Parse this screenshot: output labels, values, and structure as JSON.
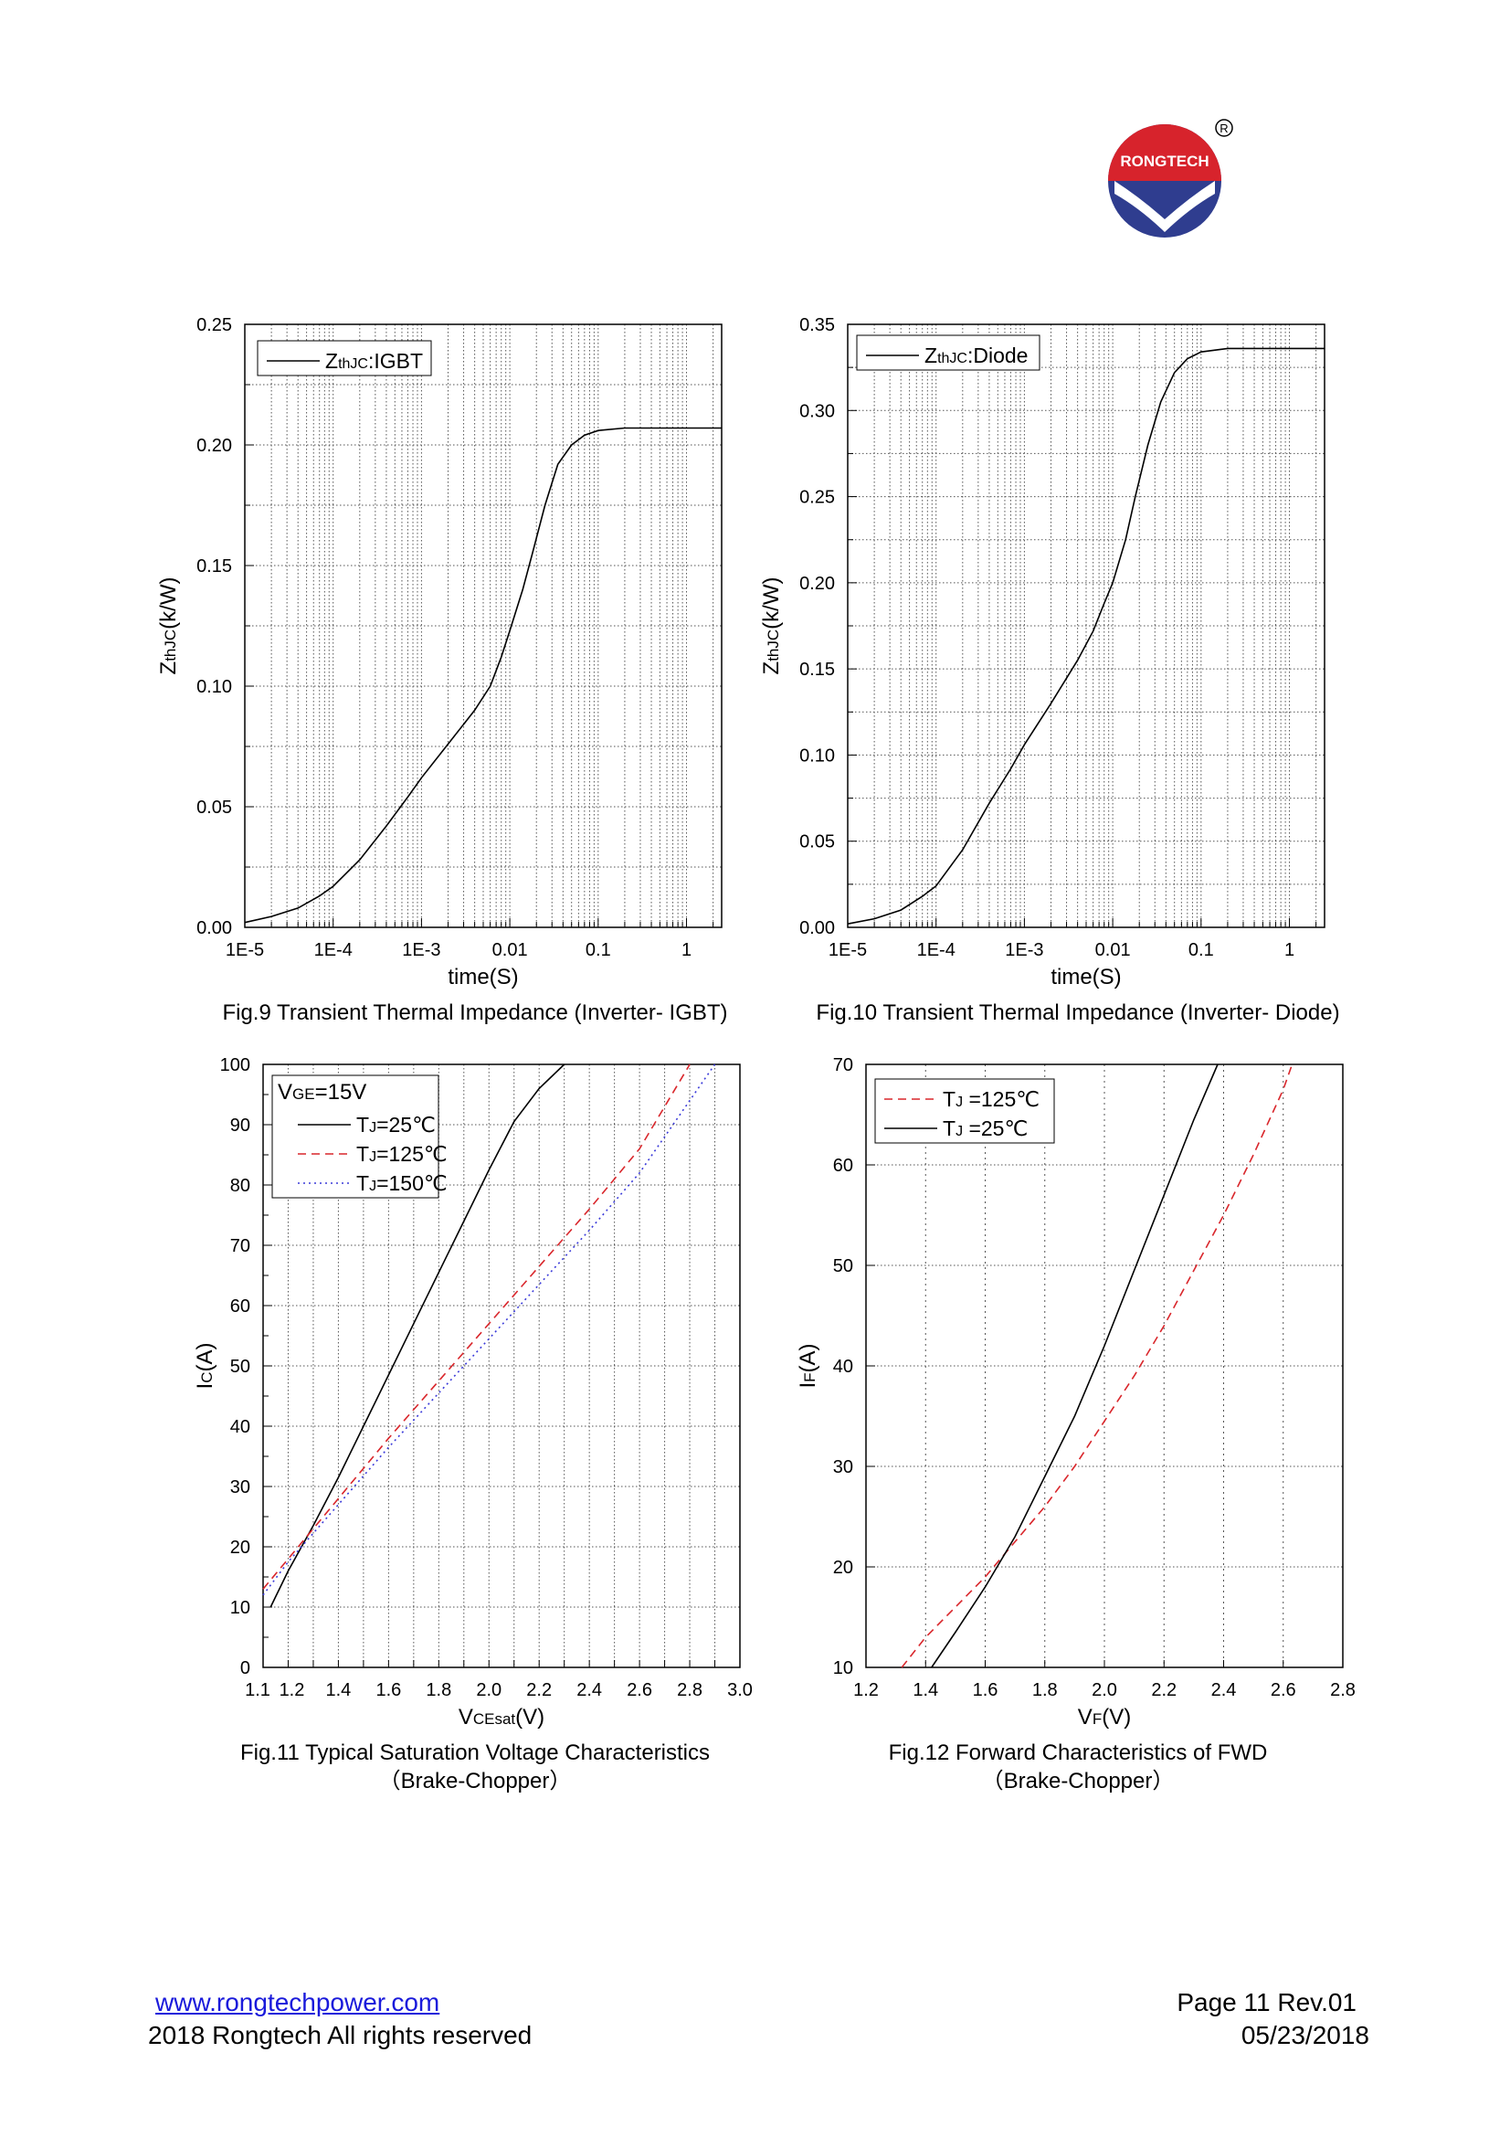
{
  "logo": {
    "brand": "RONGTECH",
    "registered": "®",
    "colors": {
      "red": "#d7232c",
      "blue": "#2f3d8f"
    }
  },
  "captions": {
    "fig9": {
      "line1": "Fig.9 Transient Thermal Impedance (Inverter- IGBT)"
    },
    "fig10": {
      "line1": "Fig.10 Transient Thermal Impedance (Inverter- Diode)"
    },
    "fig11": {
      "line1": "Fig.11 Typical Saturation Voltage Characteristics",
      "line2": "（Brake-Chopper）"
    },
    "fig12": {
      "line1": "Fig.12 Forward Characteristics of FWD",
      "line2": "（Brake-Chopper）"
    }
  },
  "footer": {
    "website": "www.rongtechpower.com",
    "copyright": "2018 Rongtech All rights reserved",
    "page": "Page 11  Rev.01",
    "date": "05/23/2018"
  },
  "chart_data": [
    {
      "id": "fig9",
      "type": "line",
      "xscale": "log",
      "xlim": [
        1e-05,
        2.5
      ],
      "ylim": [
        0,
        0.25
      ],
      "xticks": [
        1e-05,
        0.0001,
        0.001,
        0.01,
        0.1,
        1
      ],
      "xtick_labels": [
        "1E-5",
        "1E-4",
        "1E-3",
        "0.01",
        "0.1",
        "1"
      ],
      "yticks": [
        0.0,
        0.05,
        0.1,
        0.15,
        0.2,
        0.25
      ],
      "ytick_labels": [
        "0.00",
        "0.05",
        "0.10",
        "0.15",
        "0.20",
        "0.25"
      ],
      "xlabel": "time(S)",
      "ylabel": {
        "main": "Z",
        "sub": "thJC",
        "rest": "(k/W)"
      },
      "grid": true,
      "legend_position": "top-left",
      "series": [
        {
          "name": {
            "main": "Z",
            "sub": "thJC",
            "rest": ":IGBT"
          },
          "color": "#000000",
          "dash": "solid",
          "x": [
            1e-05,
            2e-05,
            4e-05,
            7e-05,
            0.0001,
            0.0002,
            0.0004,
            0.0007,
            0.001,
            0.002,
            0.004,
            0.006,
            0.008,
            0.01,
            0.014,
            0.018,
            0.025,
            0.035,
            0.05,
            0.07,
            0.1,
            0.2,
            0.5,
            1,
            2.5
          ],
          "y": [
            0.002,
            0.0045,
            0.008,
            0.013,
            0.017,
            0.028,
            0.042,
            0.054,
            0.062,
            0.076,
            0.09,
            0.1,
            0.112,
            0.123,
            0.14,
            0.155,
            0.175,
            0.192,
            0.2,
            0.204,
            0.206,
            0.207,
            0.207,
            0.207,
            0.207
          ]
        }
      ]
    },
    {
      "id": "fig10",
      "type": "line",
      "xscale": "log",
      "xlim": [
        1e-05,
        2.5
      ],
      "ylim": [
        0,
        0.35
      ],
      "xticks": [
        1e-05,
        0.0001,
        0.001,
        0.01,
        0.1,
        1
      ],
      "xtick_labels": [
        "1E-5",
        "1E-4",
        "1E-3",
        "0.01",
        "0.1",
        "1"
      ],
      "yticks": [
        0.0,
        0.05,
        0.1,
        0.15,
        0.2,
        0.25,
        0.3,
        0.35
      ],
      "ytick_labels": [
        "0.00",
        "0.05",
        "0.10",
        "0.15",
        "0.20",
        "0.25",
        "0.30",
        "0.35"
      ],
      "xlabel": "time(S)",
      "ylabel": {
        "main": "Z",
        "sub": "thJC",
        "rest": "(k/W)"
      },
      "grid": true,
      "legend_position": "top-left",
      "series": [
        {
          "name": {
            "main": "Z",
            "sub": "thJC",
            "rest": ":Diode"
          },
          "color": "#000000",
          "dash": "solid",
          "x": [
            1e-05,
            2e-05,
            4e-05,
            7e-05,
            0.0001,
            0.0002,
            0.0004,
            0.0007,
            0.001,
            0.002,
            0.004,
            0.006,
            0.008,
            0.01,
            0.014,
            0.018,
            0.025,
            0.035,
            0.05,
            0.07,
            0.1,
            0.2,
            0.5,
            1,
            2.5
          ],
          "y": [
            0.002,
            0.005,
            0.01,
            0.018,
            0.024,
            0.045,
            0.072,
            0.092,
            0.106,
            0.13,
            0.155,
            0.172,
            0.188,
            0.2,
            0.225,
            0.25,
            0.28,
            0.305,
            0.322,
            0.33,
            0.334,
            0.336,
            0.336,
            0.336,
            0.336
          ]
        }
      ]
    },
    {
      "id": "fig11",
      "type": "line",
      "xscale": "linear",
      "xlim": [
        1.1,
        3.0
      ],
      "ylim": [
        0,
        100
      ],
      "xticks": [
        1.1,
        1.2,
        1.4,
        1.6,
        1.8,
        2.0,
        2.2,
        2.4,
        2.6,
        2.8,
        3.0
      ],
      "xtick_labels": [
        "1.1",
        "1.2",
        "1.4",
        "1.6",
        "1.8",
        "2.0",
        "2.2",
        "2.4",
        "2.6",
        "2.8",
        "3.0"
      ],
      "yticks": [
        0,
        10,
        20,
        30,
        40,
        50,
        60,
        70,
        80,
        90,
        100
      ],
      "ytick_labels": [
        "0",
        "10",
        "20",
        "30",
        "40",
        "50",
        "60",
        "70",
        "80",
        "90",
        "100"
      ],
      "xlabel": {
        "main": "V",
        "sub": "CEsat",
        "rest": "(V)"
      },
      "ylabel": {
        "main": "I",
        "sub": "C",
        "rest": "(A)"
      },
      "grid": true,
      "legend_position": "top-left",
      "legend_title": {
        "main": "V",
        "sub": "GE",
        "rest": "=15V"
      },
      "series": [
        {
          "name": {
            "main": "T",
            "sub": "J",
            "rest": "=25℃"
          },
          "color": "#000000",
          "dash": "solid",
          "x": [
            1.13,
            1.2,
            1.3,
            1.4,
            1.5,
            1.6,
            1.7,
            1.8,
            1.9,
            2.0,
            2.1,
            2.2,
            2.3
          ],
          "y": [
            10,
            16,
            23.5,
            31.5,
            40,
            48.5,
            57,
            65.5,
            74,
            82.5,
            90.5,
            96,
            100
          ]
        },
        {
          "name": {
            "main": "T",
            "sub": "J",
            "rest": "=125℃"
          },
          "color": "#d9262b",
          "dash": "dashed",
          "x": [
            1.1,
            1.2,
            1.4,
            1.6,
            1.8,
            2.0,
            2.2,
            2.4,
            2.6,
            2.8
          ],
          "y": [
            13,
            18,
            28,
            38,
            47.5,
            57,
            66.5,
            76,
            86,
            100
          ]
        },
        {
          "name": {
            "main": "T",
            "sub": "J",
            "rest": "=150℃"
          },
          "color": "#3a3ad9",
          "dash": "dotted",
          "x": [
            1.1,
            1.2,
            1.4,
            1.6,
            1.8,
            2.0,
            2.2,
            2.4,
            2.6,
            2.9
          ],
          "y": [
            12,
            17.5,
            27,
            36.5,
            45.5,
            54.5,
            63.5,
            72.5,
            82,
            100
          ]
        }
      ]
    },
    {
      "id": "fig12",
      "type": "line",
      "xscale": "linear",
      "xlim": [
        1.2,
        2.8
      ],
      "ylim": [
        10,
        70
      ],
      "xticks": [
        1.2,
        1.4,
        1.6,
        1.8,
        2.0,
        2.2,
        2.4,
        2.6,
        2.8
      ],
      "xtick_labels": [
        "1.2",
        "1.4",
        "1.6",
        "1.8",
        "2.0",
        "2.2",
        "2.4",
        "2.6",
        "2.8"
      ],
      "yticks": [
        10,
        20,
        30,
        40,
        50,
        60,
        70
      ],
      "ytick_labels": [
        "10",
        "20",
        "30",
        "40",
        "50",
        "60",
        "70"
      ],
      "xlabel": {
        "main": "V",
        "sub": "F",
        "rest": "(V)"
      },
      "ylabel": {
        "main": "I",
        "sub": "F",
        "rest": "(A)"
      },
      "grid": true,
      "legend_position": "top-left",
      "series": [
        {
          "name": {
            "main": "T",
            "sub": "J",
            "rest": " =125℃"
          },
          "color": "#d9262b",
          "dash": "dashed",
          "x": [
            1.32,
            1.4,
            1.5,
            1.6,
            1.7,
            1.8,
            1.9,
            2.0,
            2.1,
            2.2,
            2.3,
            2.4,
            2.5,
            2.6,
            2.63
          ],
          "y": [
            10,
            13,
            16,
            19,
            22.5,
            26,
            30,
            34.5,
            39,
            44,
            49.5,
            55,
            61,
            67.5,
            70
          ]
        },
        {
          "name": {
            "main": "T",
            "sub": "J",
            "rest": " =25℃"
          },
          "color": "#000000",
          "dash": "solid",
          "x": [
            1.42,
            1.5,
            1.6,
            1.7,
            1.8,
            1.9,
            2.0,
            2.1,
            2.2,
            2.3,
            2.38
          ],
          "y": [
            10,
            13.5,
            18,
            23,
            29,
            35,
            42,
            49.5,
            57,
            64.5,
            70
          ]
        }
      ]
    }
  ]
}
